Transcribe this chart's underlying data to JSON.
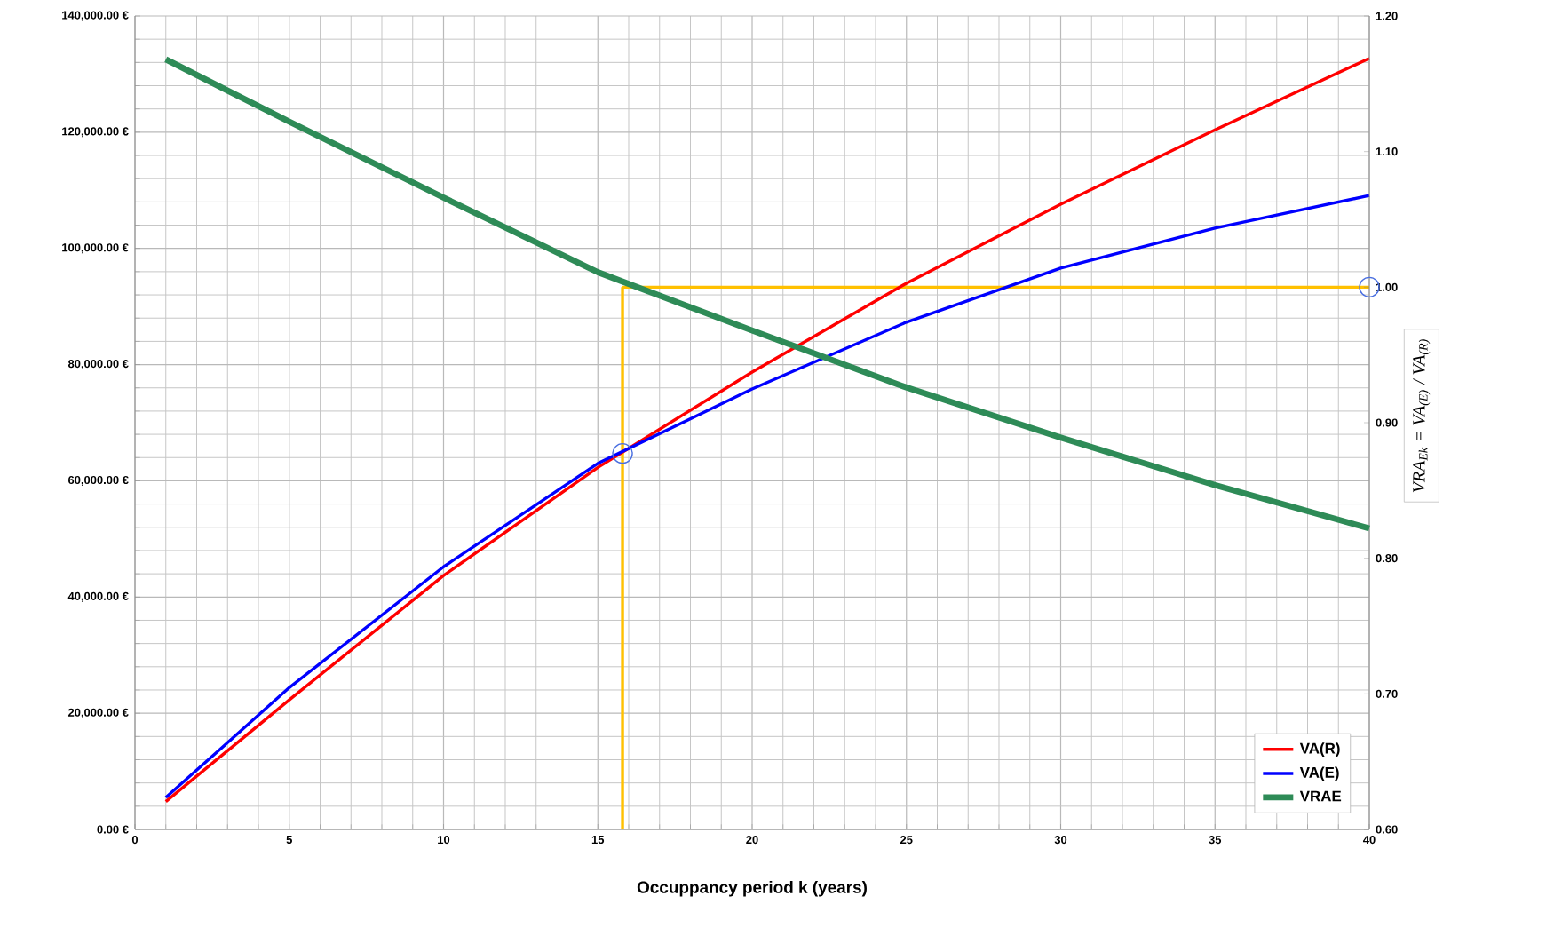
{
  "chart_data": {
    "type": "line",
    "xlabel": "Occuppancy period k (years)",
    "y2label": "VRA$_{Ek}$ = VA$_{(E)}$ / VA$_{(R)}$",
    "x": [
      1,
      5,
      10,
      15,
      20,
      25,
      30,
      35,
      40
    ],
    "xlim": [
      0,
      40
    ],
    "xticks": [
      0,
      5,
      10,
      15,
      20,
      25,
      30,
      35,
      40
    ],
    "ylim": [
      0,
      140000
    ],
    "yticks": [
      {
        "value": 0,
        "label": "0.00 €"
      },
      {
        "value": 20000,
        "label": "20,000.00 €"
      },
      {
        "value": 40000,
        "label": "40,000.00 €"
      },
      {
        "value": 60000,
        "label": "60,000.00 €"
      },
      {
        "value": 80000,
        "label": "80,000.00 €"
      },
      {
        "value": 100000,
        "label": "100,000.00 €"
      },
      {
        "value": 120000,
        "label": "120,000.00 €"
      },
      {
        "value": 140000,
        "label": "140,000.00 €"
      }
    ],
    "y2lim": [
      0.6,
      1.2
    ],
    "y2ticks": [
      {
        "value": 0.6,
        "label": "0.60"
      },
      {
        "value": 0.7,
        "label": "0.70"
      },
      {
        "value": 0.8,
        "label": "0.80"
      },
      {
        "value": 0.9,
        "label": "0.90"
      },
      {
        "value": 1.0,
        "label": "1.00"
      },
      {
        "value": 1.1,
        "label": "1.10"
      },
      {
        "value": 1.2,
        "label": "1.20"
      }
    ],
    "grid": true,
    "legend": "bottom right",
    "ref_lines": [
      {
        "axis": "x",
        "value": 15.8,
        "color": "#ffc000"
      },
      {
        "axis": "y2",
        "value": 1.0,
        "color": "#ffc000"
      }
    ],
    "series": [
      {
        "name": "VA(R)",
        "color": "#ff0000",
        "values": [
          4800,
          22300,
          43700,
          62300,
          78700,
          94000,
          107600,
          120400,
          132700
        ]
      },
      {
        "name": "VA(E)",
        "color": "#0000ff",
        "values": [
          5500,
          24400,
          45200,
          63000,
          75800,
          87300,
          96600,
          103500,
          109100
        ]
      },
      {
        "name": "VRAE",
        "color": "#2e8b57",
        "axis": "y2",
        "values": [
          1.168,
          1.122,
          1.066,
          1.011,
          0.968,
          0.926,
          0.889,
          0.854,
          0.822
        ]
      },
      {
        "type": "scatter",
        "marker": "circle",
        "color": "#4a6fe0",
        "x": [
          15.8
        ],
        "values": [
          64700
        ]
      },
      {
        "type": "scatter",
        "marker": "circle",
        "color": "#4a6fe0",
        "axis": "y2",
        "x": [
          40
        ],
        "values": [
          1.0
        ]
      }
    ]
  }
}
